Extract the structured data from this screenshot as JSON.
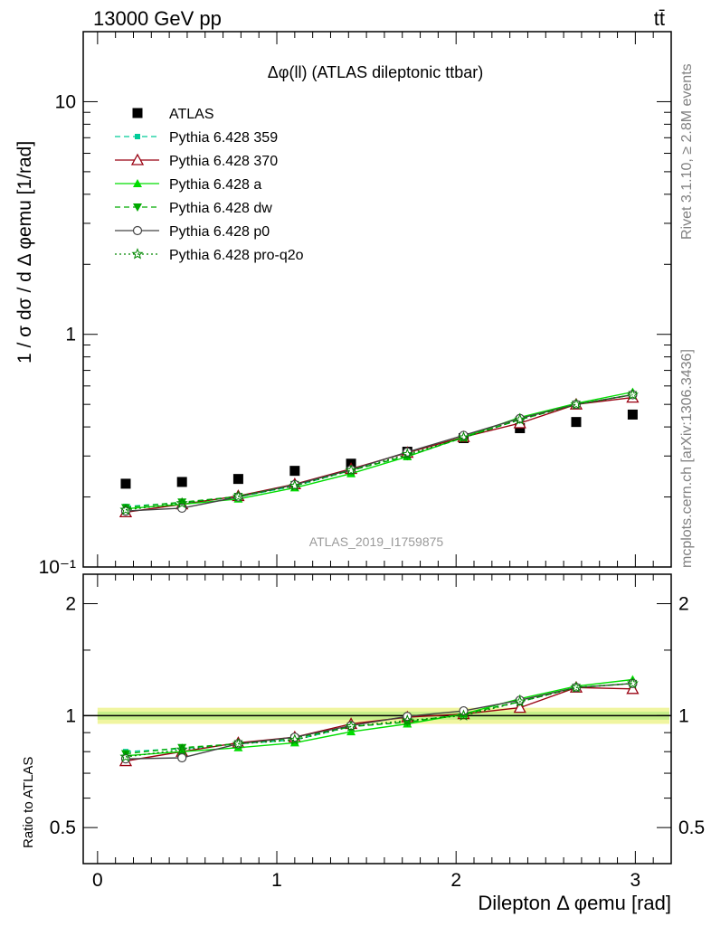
{
  "header": {
    "left": "13000 GeV pp",
    "right": "tt̄"
  },
  "side_labels": {
    "rivet": "Rivet 3.1.10, ≥ 2.8M events",
    "mcplots": "mcplots.cern.ch [arXiv:1306.3436]"
  },
  "colors": {
    "atlas": "#000000",
    "p359": "#00cc99",
    "p370": "#990011",
    "pa": "#00dd00",
    "pdw": "#00aa00",
    "pp0": "#444444",
    "pq2o": "#008800",
    "band_outer": "#f0f5a0",
    "band_inner": "#c6ef8a"
  },
  "chart_data": [
    {
      "type": "line",
      "title": "Δφ(ll) (ATLAS dileptonic ttbar)",
      "watermark": "ATLAS_2019_I1759875",
      "ylabel": "1 / σ  dσ / d Δ φemu [1/rad]",
      "yscale": "log",
      "ylim": [
        0.1,
        20
      ],
      "xlim": [
        -0.08,
        3.2
      ],
      "yticklabels": [
        "10⁻¹",
        "1",
        "10"
      ],
      "x": [
        0.157,
        0.471,
        0.785,
        1.1,
        1.414,
        1.728,
        2.042,
        2.356,
        2.67,
        2.985
      ],
      "series": [
        {
          "name": "ATLAS",
          "marker": "square",
          "values": [
            0.228,
            0.232,
            0.239,
            0.259,
            0.278,
            0.313,
            0.358,
            0.395,
            0.42,
            0.452
          ]
        },
        {
          "name": "Pythia 6.428 359",
          "marker": "small-square",
          "dash": "dashed",
          "values": [
            0.182,
            0.189,
            0.2,
            0.223,
            0.26,
            0.3,
            0.36,
            0.43,
            0.5,
            0.55
          ]
        },
        {
          "name": "Pythia 6.428 370",
          "marker": "open-triangle",
          "dash": "solid",
          "values": [
            0.172,
            0.186,
            0.202,
            0.227,
            0.264,
            0.31,
            0.362,
            0.415,
            0.5,
            0.535
          ]
        },
        {
          "name": "Pythia 6.428 a",
          "marker": "triangle",
          "dash": "solid",
          "values": [
            0.178,
            0.186,
            0.196,
            0.219,
            0.252,
            0.298,
            0.362,
            0.44,
            0.505,
            0.565
          ]
        },
        {
          "name": "Pythia 6.428 dw",
          "marker": "down-triangle",
          "dash": "dashed",
          "values": [
            0.18,
            0.19,
            0.201,
            0.226,
            0.26,
            0.3,
            0.36,
            0.43,
            0.5,
            0.55
          ]
        },
        {
          "name": "Pythia 6.428 p0",
          "marker": "open-circle",
          "dash": "solid",
          "values": [
            0.174,
            0.179,
            0.2,
            0.226,
            0.262,
            0.312,
            0.368,
            0.435,
            0.5,
            0.55
          ]
        },
        {
          "name": "Pythia 6.428 pro-q2o",
          "marker": "star",
          "dash": "dotted",
          "values": [
            0.176,
            0.188,
            0.201,
            0.223,
            0.26,
            0.305,
            0.36,
            0.43,
            0.5,
            0.55
          ]
        }
      ]
    },
    {
      "type": "line",
      "ylabel": "Ratio to ATLAS",
      "xlabel": "Dilepton Δ φemu [rad]",
      "yscale": "log",
      "ylim": [
        0.4,
        2.4
      ],
      "xlim": [
        -0.08,
        3.2
      ],
      "xticklabels": [
        "0",
        "1",
        "2",
        "3"
      ],
      "yticklabels": [
        "0.5",
        "1",
        "2"
      ],
      "x": [
        0.157,
        0.471,
        0.785,
        1.1,
        1.414,
        1.728,
        2.042,
        2.356,
        2.67,
        2.985
      ],
      "series": [
        {
          "name": "Pythia 6.428 359",
          "values": [
            0.8,
            0.815,
            0.84,
            0.86,
            0.935,
            0.96,
            1.01,
            1.09,
            1.19,
            1.22
          ]
        },
        {
          "name": "Pythia 6.428 370",
          "values": [
            0.755,
            0.8,
            0.845,
            0.875,
            0.95,
            0.99,
            1.01,
            1.05,
            1.19,
            1.18
          ]
        },
        {
          "name": "Pythia 6.428 a",
          "values": [
            0.78,
            0.8,
            0.82,
            0.845,
            0.905,
            0.95,
            1.01,
            1.11,
            1.2,
            1.25
          ]
        },
        {
          "name": "Pythia 6.428 dw",
          "values": [
            0.79,
            0.82,
            0.84,
            0.87,
            0.935,
            0.96,
            1.01,
            1.09,
            1.19,
            1.22
          ]
        },
        {
          "name": "Pythia 6.428 p0",
          "values": [
            0.765,
            0.77,
            0.84,
            0.875,
            0.94,
            0.995,
            1.03,
            1.1,
            1.19,
            1.22
          ]
        },
        {
          "name": "Pythia 6.428 pro-q2o",
          "values": [
            0.775,
            0.81,
            0.84,
            0.86,
            0.935,
            0.97,
            1.0,
            1.09,
            1.19,
            1.22
          ]
        }
      ],
      "reference_band": {
        "value": 1.0,
        "outer": 0.05,
        "inner": 0.025
      }
    }
  ]
}
